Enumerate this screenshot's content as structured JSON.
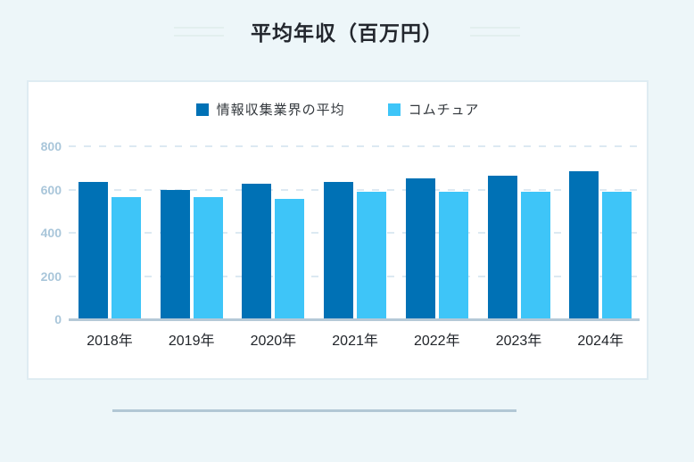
{
  "page": {
    "title": "平均年収（百万円）"
  },
  "colors": {
    "background": "#edf6f9",
    "card_background": "#ffffff",
    "card_border": "#dfecf2",
    "series1": "#0071b5",
    "series2": "#3ec5f8",
    "ytick_label": "#a9c6da",
    "xtick_label": "#22262b",
    "gridline": "#dce9f2",
    "baseline": "#b5c9d7",
    "divider": "#b2c7d5",
    "title_text": "#23272e"
  },
  "chart_data": {
    "type": "bar",
    "title": "平均年収（百万円）",
    "categories": [
      "2018年",
      "2019年",
      "2020年",
      "2021年",
      "2022年",
      "2023年",
      "2024年"
    ],
    "series": [
      {
        "name": "情報収集業界の平均",
        "color": "#0071b5",
        "values": [
          635,
          600,
          625,
          635,
          650,
          665,
          685
        ]
      },
      {
        "name": "コムチュア",
        "color": "#3ec5f8",
        "values": [
          565,
          565,
          555,
          590,
          590,
          590,
          590
        ]
      }
    ],
    "xlabel": "",
    "ylabel": "",
    "ylim": [
      0,
      800
    ],
    "yticks": [
      0,
      200,
      400,
      600,
      800
    ],
    "grid": "horizontal-dashed",
    "legend_position": "top-center"
  }
}
